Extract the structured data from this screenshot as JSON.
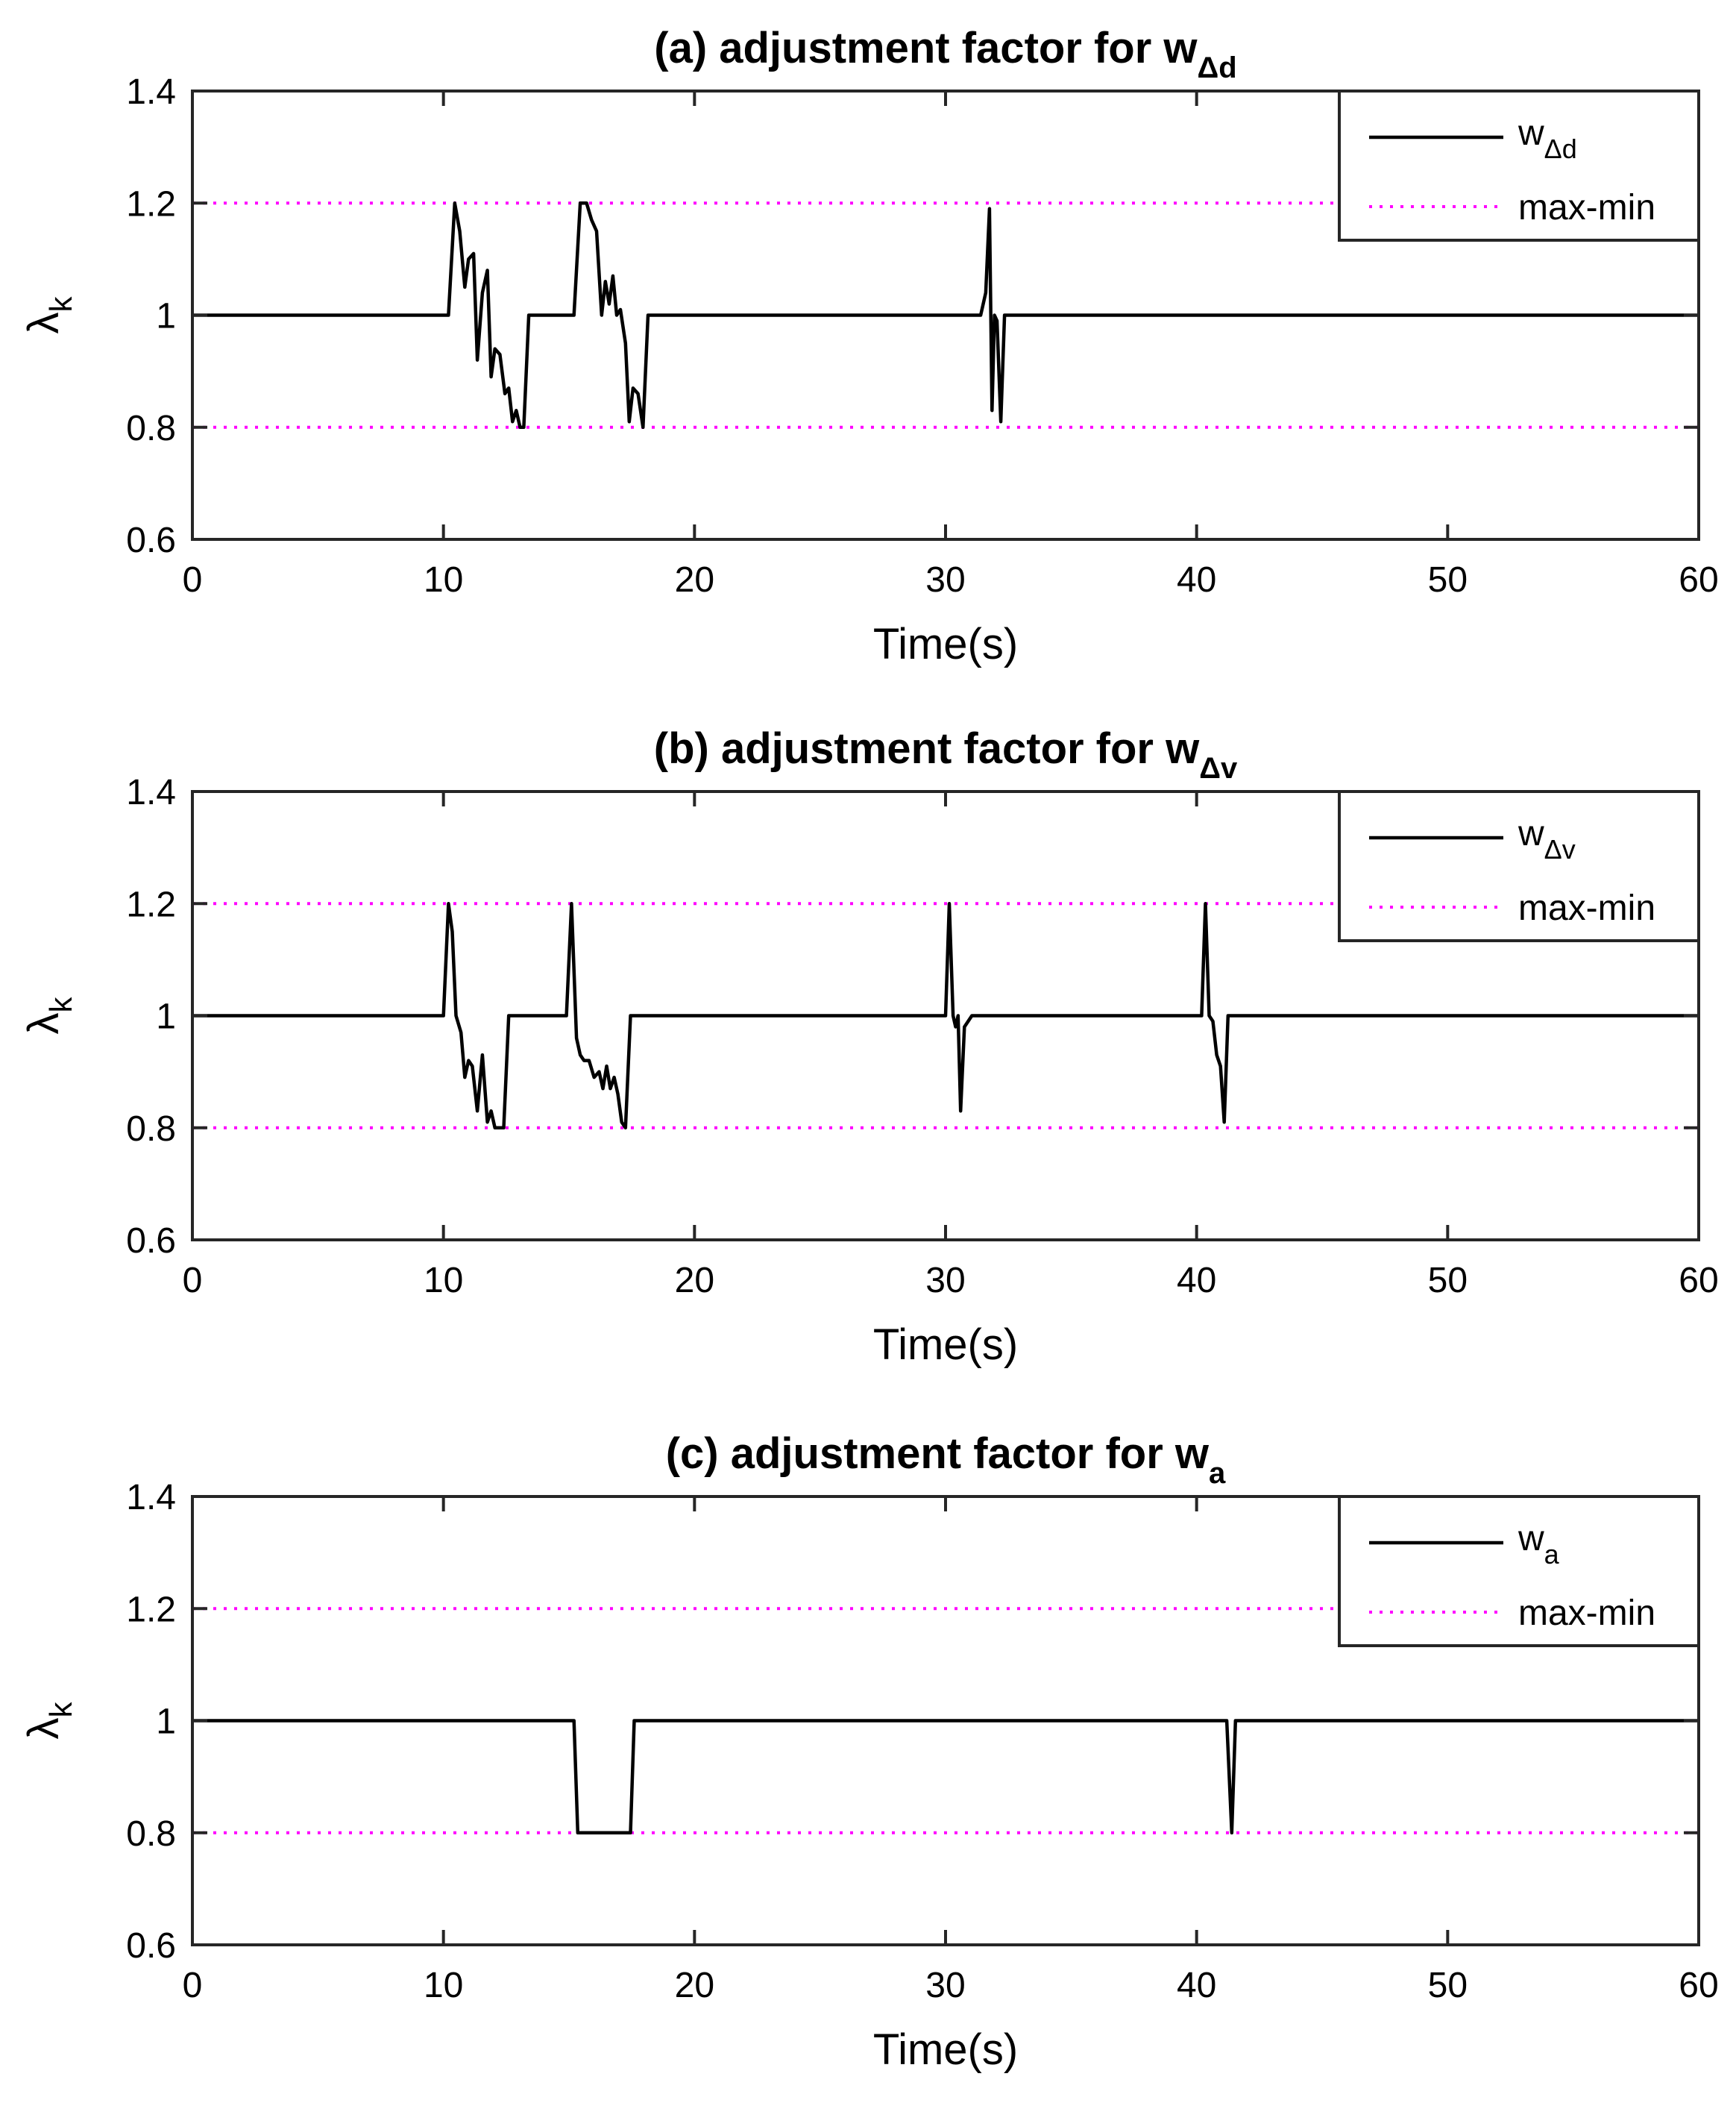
{
  "chart_data": [
    {
      "type": "line",
      "title": "(a) adjustment factor for w",
      "title_subscript": "Δd",
      "xlabel": "Time(s)",
      "ylabel": "λ",
      "ylabel_subscript": "k",
      "xlim": [
        0,
        60
      ],
      "ylim": [
        0.6,
        1.4
      ],
      "xticks": [
        "0",
        "10",
        "20",
        "30",
        "40",
        "50",
        "60"
      ],
      "yticks": [
        "0.6",
        "0.8",
        "1",
        "1.2",
        "1.4"
      ],
      "legend_position": "top-right",
      "series": [
        {
          "name": "w",
          "name_subscript": "Δd",
          "color": "#000000",
          "style": "solid",
          "x": [
            0,
            10.2,
            10.45,
            10.65,
            10.85,
            11.0,
            11.2,
            11.35,
            11.55,
            11.75,
            11.9,
            12.05,
            12.25,
            12.45,
            12.6,
            12.75,
            12.9,
            13.05,
            13.2,
            13.4,
            15.2,
            15.45,
            15.7,
            15.9,
            16.1,
            16.3,
            16.45,
            16.6,
            16.75,
            16.9,
            17.05,
            17.25,
            17.4,
            17.55,
            17.75,
            17.95,
            18.15,
            31.4,
            31.6,
            31.75,
            31.85,
            31.95,
            32.05,
            32.2,
            32.35,
            60
          ],
          "y": [
            1.0,
            1.0,
            1.2,
            1.15,
            1.05,
            1.1,
            1.11,
            0.92,
            1.04,
            1.08,
            0.89,
            0.94,
            0.93,
            0.86,
            0.87,
            0.81,
            0.83,
            0.8,
            0.8,
            1.0,
            1.0,
            1.2,
            1.2,
            1.17,
            1.15,
            1.0,
            1.06,
            1.02,
            1.07,
            1.0,
            1.01,
            0.95,
            0.81,
            0.87,
            0.86,
            0.8,
            1.0,
            1.0,
            1.04,
            1.19,
            0.83,
            1.0,
            0.99,
            0.81,
            1.0,
            1.0
          ]
        },
        {
          "name": "max-min",
          "color": "#FF00FF",
          "style": "dotted",
          "levels": [
            1.2,
            0.8
          ]
        }
      ]
    },
    {
      "type": "line",
      "title": "(b) adjustment factor for w",
      "title_subscript": "Δv",
      "xlabel": "Time(s)",
      "ylabel": "λ",
      "ylabel_subscript": "k",
      "xlim": [
        0,
        60
      ],
      "ylim": [
        0.6,
        1.4
      ],
      "xticks": [
        "0",
        "10",
        "20",
        "30",
        "40",
        "50",
        "60"
      ],
      "yticks": [
        "0.6",
        "0.8",
        "1",
        "1.2",
        "1.4"
      ],
      "legend_position": "top-right",
      "series": [
        {
          "name": "w",
          "name_subscript": "Δv",
          "color": "#000000",
          "style": "solid",
          "x": [
            0,
            10.0,
            10.2,
            10.35,
            10.5,
            10.7,
            10.85,
            11.0,
            11.15,
            11.35,
            11.55,
            11.75,
            11.9,
            12.05,
            12.2,
            12.4,
            12.6,
            12.8,
            14.9,
            15.1,
            15.3,
            15.45,
            15.6,
            15.8,
            16.0,
            16.2,
            16.35,
            16.5,
            16.65,
            16.8,
            16.95,
            17.1,
            17.25,
            17.45,
            30.0,
            30.15,
            30.3,
            30.4,
            30.5,
            30.6,
            30.75,
            30.9,
            31.05,
            31.25,
            40.2,
            40.35,
            40.5,
            40.65,
            40.8,
            40.95,
            41.1,
            41.25,
            60
          ],
          "y": [
            1.0,
            1.0,
            1.2,
            1.15,
            1.0,
            0.97,
            0.89,
            0.92,
            0.91,
            0.83,
            0.93,
            0.81,
            0.83,
            0.8,
            0.8,
            0.8,
            1.0,
            1.0,
            1.0,
            1.2,
            0.96,
            0.93,
            0.92,
            0.92,
            0.89,
            0.9,
            0.87,
            0.91,
            0.87,
            0.89,
            0.86,
            0.81,
            0.8,
            1.0,
            1.0,
            1.2,
            1.0,
            0.98,
            1.0,
            0.83,
            0.98,
            0.99,
            1.0,
            1.0,
            1.0,
            1.2,
            1.0,
            0.99,
            0.93,
            0.91,
            0.81,
            1.0,
            1.0
          ]
        },
        {
          "name": "max-min",
          "color": "#FF00FF",
          "style": "dotted",
          "levels": [
            1.2,
            0.8
          ]
        }
      ]
    },
    {
      "type": "line",
      "title": "(c) adjustment factor for w",
      "title_subscript": "a",
      "xlabel": "Time(s)",
      "ylabel": "λ",
      "ylabel_subscript": "k",
      "xlim": [
        0,
        60
      ],
      "ylim": [
        0.6,
        1.4
      ],
      "xticks": [
        "0",
        "10",
        "20",
        "30",
        "40",
        "50",
        "60"
      ],
      "yticks": [
        "0.6",
        "0.8",
        "1",
        "1.2",
        "1.4"
      ],
      "legend_position": "top-right",
      "series": [
        {
          "name": "w",
          "name_subscript": "a",
          "color": "#000000",
          "style": "solid",
          "x": [
            0,
            15.2,
            15.35,
            17.45,
            17.6,
            41.2,
            41.4,
            41.55,
            60
          ],
          "y": [
            1.0,
            1.0,
            0.8,
            0.8,
            1.0,
            1.0,
            0.8,
            1.0,
            1.0
          ]
        },
        {
          "name": "max-min",
          "color": "#FF00FF",
          "style": "dotted",
          "levels": [
            1.2,
            0.8
          ]
        }
      ]
    }
  ]
}
